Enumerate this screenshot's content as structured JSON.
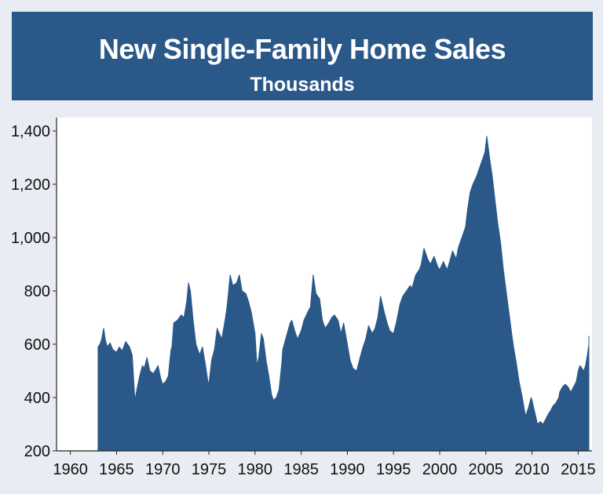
{
  "header": {
    "title": "New Single-Family Home Sales",
    "subtitle": "Thousands"
  },
  "colors": {
    "header_bg": "#2a5888",
    "series_fill": "#2a5888",
    "page_bg": "#e9ecf2",
    "plot_bg": "#ffffff"
  },
  "chart_data": {
    "type": "area",
    "title": "New Single-Family Home Sales",
    "subtitle": "Thousands",
    "xlabel": "",
    "ylabel": "",
    "xlim": [
      1958.5,
      2016.5
    ],
    "ylim": [
      200,
      1450
    ],
    "x_ticks": [
      1960,
      1965,
      1970,
      1975,
      1980,
      1985,
      1990,
      1995,
      2000,
      2005,
      2010,
      2015
    ],
    "x_tick_labels": [
      "1960",
      "1965",
      "1970",
      "1975",
      "1980",
      "1985",
      "1990",
      "1995",
      "2000",
      "2005",
      "2010",
      "2015"
    ],
    "y_ticks": [
      200,
      400,
      600,
      800,
      1000,
      1200,
      1400
    ],
    "y_tick_labels": [
      "200",
      "400",
      "600",
      "800",
      "1,000",
      "1,200",
      "1,400"
    ],
    "grid": false,
    "legend": "none",
    "series": [
      {
        "values": [
          [
            1963.0,
            590
          ],
          [
            1963.2,
            600
          ],
          [
            1963.4,
            620
          ],
          [
            1963.6,
            660
          ],
          [
            1963.8,
            615
          ],
          [
            1964.0,
            590
          ],
          [
            1964.3,
            605
          ],
          [
            1964.6,
            580
          ],
          [
            1965.0,
            570
          ],
          [
            1965.3,
            590
          ],
          [
            1965.6,
            575
          ],
          [
            1966.0,
            610
          ],
          [
            1966.4,
            590
          ],
          [
            1966.7,
            560
          ],
          [
            1966.9,
            440
          ],
          [
            1967.0,
            390
          ],
          [
            1967.2,
            430
          ],
          [
            1967.5,
            480
          ],
          [
            1967.8,
            520
          ],
          [
            1968.0,
            510
          ],
          [
            1968.3,
            550
          ],
          [
            1968.6,
            500
          ],
          [
            1969.0,
            490
          ],
          [
            1969.5,
            520
          ],
          [
            1969.8,
            470
          ],
          [
            1970.0,
            450
          ],
          [
            1970.3,
            460
          ],
          [
            1970.6,
            480
          ],
          [
            1970.9,
            580
          ],
          [
            1971.0,
            590
          ],
          [
            1971.2,
            680
          ],
          [
            1971.6,
            690
          ],
          [
            1972.0,
            710
          ],
          [
            1972.3,
            700
          ],
          [
            1972.6,
            760
          ],
          [
            1972.8,
            830
          ],
          [
            1973.0,
            800
          ],
          [
            1973.3,
            690
          ],
          [
            1973.6,
            600
          ],
          [
            1974.0,
            560
          ],
          [
            1974.3,
            590
          ],
          [
            1974.6,
            530
          ],
          [
            1974.9,
            460
          ],
          [
            1975.0,
            450
          ],
          [
            1975.3,
            540
          ],
          [
            1975.6,
            580
          ],
          [
            1975.9,
            660
          ],
          [
            1976.0,
            650
          ],
          [
            1976.4,
            620
          ],
          [
            1976.8,
            700
          ],
          [
            1977.0,
            750
          ],
          [
            1977.3,
            860
          ],
          [
            1977.6,
            820
          ],
          [
            1978.0,
            830
          ],
          [
            1978.3,
            860
          ],
          [
            1978.6,
            800
          ],
          [
            1979.0,
            790
          ],
          [
            1979.3,
            760
          ],
          [
            1979.6,
            720
          ],
          [
            1980.0,
            640
          ],
          [
            1980.2,
            520
          ],
          [
            1980.4,
            550
          ],
          [
            1980.7,
            640
          ],
          [
            1980.9,
            620
          ],
          [
            1981.2,
            540
          ],
          [
            1981.5,
            480
          ],
          [
            1981.8,
            410
          ],
          [
            1982.0,
            390
          ],
          [
            1982.3,
            400
          ],
          [
            1982.6,
            430
          ],
          [
            1982.9,
            530
          ],
          [
            1983.0,
            580
          ],
          [
            1983.4,
            630
          ],
          [
            1983.8,
            680
          ],
          [
            1984.0,
            690
          ],
          [
            1984.3,
            650
          ],
          [
            1984.6,
            620
          ],
          [
            1985.0,
            650
          ],
          [
            1985.3,
            690
          ],
          [
            1985.7,
            720
          ],
          [
            1986.0,
            740
          ],
          [
            1986.3,
            860
          ],
          [
            1986.6,
            790
          ],
          [
            1987.0,
            770
          ],
          [
            1987.3,
            690
          ],
          [
            1987.6,
            660
          ],
          [
            1988.0,
            680
          ],
          [
            1988.3,
            700
          ],
          [
            1988.6,
            710
          ],
          [
            1989.0,
            690
          ],
          [
            1989.3,
            640
          ],
          [
            1989.6,
            680
          ],
          [
            1990.0,
            600
          ],
          [
            1990.3,
            540
          ],
          [
            1990.6,
            510
          ],
          [
            1991.0,
            500
          ],
          [
            1991.3,
            540
          ],
          [
            1991.7,
            590
          ],
          [
            1992.0,
            620
          ],
          [
            1992.3,
            670
          ],
          [
            1992.7,
            640
          ],
          [
            1993.0,
            660
          ],
          [
            1993.3,
            700
          ],
          [
            1993.6,
            780
          ],
          [
            1994.0,
            720
          ],
          [
            1994.3,
            680
          ],
          [
            1994.6,
            650
          ],
          [
            1995.0,
            640
          ],
          [
            1995.3,
            680
          ],
          [
            1995.7,
            750
          ],
          [
            1996.0,
            780
          ],
          [
            1996.4,
            800
          ],
          [
            1996.8,
            820
          ],
          [
            1997.0,
            810
          ],
          [
            1997.4,
            860
          ],
          [
            1997.8,
            880
          ],
          [
            1998.0,
            900
          ],
          [
            1998.3,
            960
          ],
          [
            1998.7,
            920
          ],
          [
            1999.0,
            900
          ],
          [
            1999.4,
            930
          ],
          [
            1999.8,
            890
          ],
          [
            2000.0,
            880
          ],
          [
            2000.4,
            910
          ],
          [
            2000.8,
            880
          ],
          [
            2001.0,
            900
          ],
          [
            2001.4,
            950
          ],
          [
            2001.8,
            920
          ],
          [
            2002.0,
            960
          ],
          [
            2002.4,
            1000
          ],
          [
            2002.8,
            1040
          ],
          [
            2003.0,
            1100
          ],
          [
            2003.3,
            1170
          ],
          [
            2003.6,
            1200
          ],
          [
            2004.0,
            1230
          ],
          [
            2004.3,
            1260
          ],
          [
            2004.6,
            1290
          ],
          [
            2004.9,
            1320
          ],
          [
            2005.1,
            1380
          ],
          [
            2005.4,
            1300
          ],
          [
            2005.7,
            1230
          ],
          [
            2006.0,
            1140
          ],
          [
            2006.3,
            1050
          ],
          [
            2006.6,
            980
          ],
          [
            2006.9,
            880
          ],
          [
            2007.2,
            800
          ],
          [
            2007.5,
            720
          ],
          [
            2007.8,
            640
          ],
          [
            2008.0,
            590
          ],
          [
            2008.3,
            530
          ],
          [
            2008.6,
            460
          ],
          [
            2008.9,
            410
          ],
          [
            2009.1,
            370
          ],
          [
            2009.3,
            330
          ],
          [
            2009.6,
            360
          ],
          [
            2009.9,
            400
          ],
          [
            2010.0,
            390
          ],
          [
            2010.2,
            360
          ],
          [
            2010.4,
            330
          ],
          [
            2010.6,
            300
          ],
          [
            2010.9,
            310
          ],
          [
            2011.2,
            300
          ],
          [
            2011.5,
            320
          ],
          [
            2011.8,
            340
          ],
          [
            2012.0,
            350
          ],
          [
            2012.3,
            370
          ],
          [
            2012.6,
            380
          ],
          [
            2012.9,
            400
          ],
          [
            2013.0,
            420
          ],
          [
            2013.3,
            440
          ],
          [
            2013.6,
            450
          ],
          [
            2013.9,
            440
          ],
          [
            2014.2,
            420
          ],
          [
            2014.5,
            440
          ],
          [
            2014.8,
            460
          ],
          [
            2015.0,
            500
          ],
          [
            2015.2,
            520
          ],
          [
            2015.4,
            510
          ],
          [
            2015.6,
            500
          ],
          [
            2015.8,
            520
          ],
          [
            2016.0,
            560
          ],
          [
            2016.2,
            600
          ],
          [
            2016.4,
            560
          ],
          [
            2016.6,
            620
          ],
          [
            2016.8,
            600
          ],
          [
            2017.0,
            630
          ]
        ]
      }
    ]
  }
}
